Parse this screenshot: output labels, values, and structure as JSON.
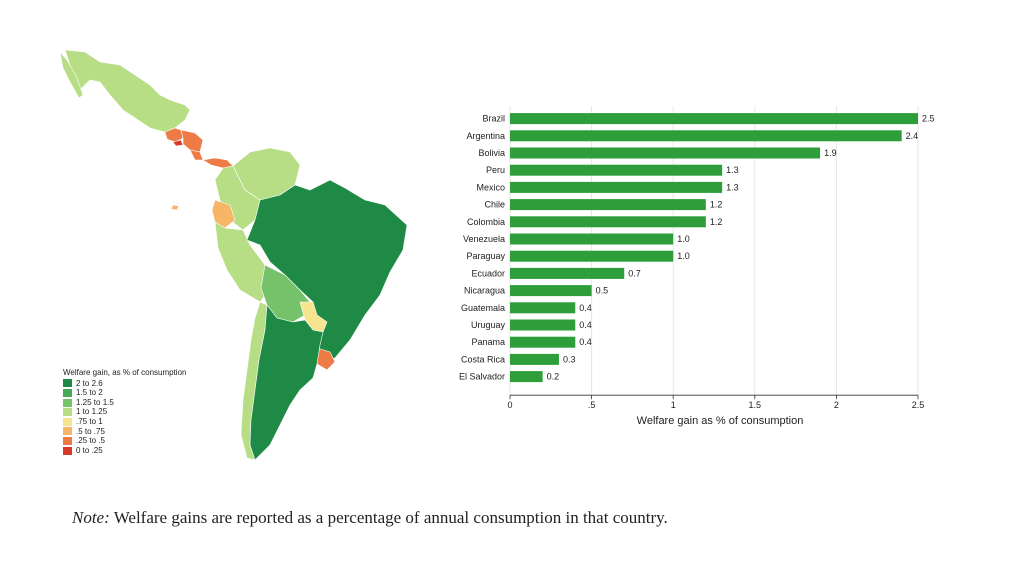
{
  "chart_data": {
    "type": "bar",
    "orientation": "horizontal",
    "categories": [
      "Brazil",
      "Argentina",
      "Bolivia",
      "Peru",
      "Mexico",
      "Chile",
      "Colombia",
      "Venezuela",
      "Paraguay",
      "Ecuador",
      "Nicaragua",
      "Guatemala",
      "Uruguay",
      "Panama",
      "Costa Rica",
      "El Salvador"
    ],
    "values": [
      2.5,
      2.4,
      1.9,
      1.3,
      1.3,
      1.2,
      1.2,
      1.0,
      1.0,
      0.7,
      0.5,
      0.4,
      0.4,
      0.4,
      0.3,
      0.2
    ],
    "value_labels": [
      "2.5",
      "2.4",
      "1.9",
      "1.3",
      "1.3",
      "1.2",
      "1.2",
      "1.0",
      "1.0",
      "0.7",
      "0.5",
      "0.4",
      "0.4",
      "0.4",
      "0.3",
      "0.2"
    ],
    "xlabel": "Welfare gain as % of consumption",
    "xlim": [
      0,
      2.5
    ],
    "xticks": [
      0,
      0.5,
      1,
      1.5,
      2,
      2.5
    ],
    "xtick_labels": [
      "0",
      ".5",
      "1",
      "1.5",
      "2",
      "2.5"
    ],
    "grid": "vertical",
    "bar_color": "#2e9e3a"
  },
  "map": {
    "legend_title": "Welfare gain, as % of consumption",
    "legend": [
      {
        "label": "2 to 2.6",
        "color": "#1f8a45"
      },
      {
        "label": "1.5 to 2",
        "color": "#45a957"
      },
      {
        "label": "1.25 to 1.5",
        "color": "#75c26a"
      },
      {
        "label": "1 to 1.25",
        "color": "#b7dd85"
      },
      {
        "label": ".75 to 1",
        "color": "#f6e48f"
      },
      {
        "label": ".5 to .75",
        "color": "#f7b567"
      },
      {
        "label": ".25 to .5",
        "color": "#ee7a45"
      },
      {
        "label": "0 to .25",
        "color": "#d63a2a"
      }
    ]
  },
  "note": {
    "prefix": "Note:",
    "text": " Welfare gains are reported as a percentage of annual consumption in that country."
  }
}
